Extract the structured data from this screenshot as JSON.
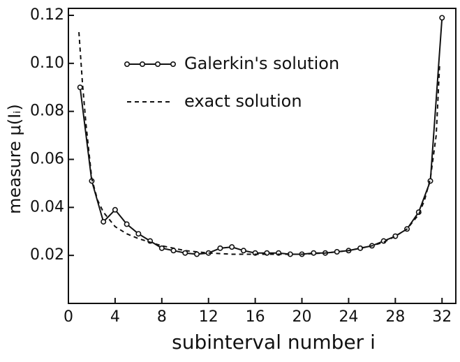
{
  "chart_data": {
    "type": "line",
    "xlabel": "subinterval number  i",
    "ylabel": "measure  μ(Iᵢ)",
    "xlim": [
      0,
      33.3
    ],
    "ylim": [
      0,
      0.12
    ],
    "xticks": [
      0,
      4,
      8,
      12,
      16,
      20,
      24,
      28,
      32
    ],
    "yticks": [
      0.02,
      0.04,
      0.06,
      0.08,
      {
        "value": 0.1,
        "label": "0.10"
      },
      0.12
    ],
    "series": [
      {
        "name": "Galerkin's solution",
        "color": "#111111",
        "style": "solid-markers",
        "x": [
          1,
          2,
          3,
          4,
          5,
          6,
          7,
          8,
          9,
          10,
          11,
          12,
          13,
          14,
          15,
          16,
          17,
          18,
          19,
          20,
          21,
          22,
          23,
          24,
          25,
          26,
          27,
          28,
          29,
          30,
          31,
          32
        ],
        "values": [
          0.09,
          0.051,
          0.034,
          0.039,
          0.033,
          0.029,
          0.026,
          0.023,
          0.022,
          0.021,
          0.0205,
          0.021,
          0.023,
          0.0235,
          0.022,
          0.021,
          0.021,
          0.021,
          0.0205,
          0.0205,
          0.021,
          0.021,
          0.0215,
          0.022,
          0.023,
          0.024,
          0.026,
          0.028,
          0.031,
          0.038,
          0.051,
          0.119
        ]
      },
      {
        "name": "exact solution",
        "color": "#111111",
        "style": "dashed",
        "x": [
          0.9,
          1.2,
          1.5,
          2,
          2.5,
          3,
          4,
          5,
          6,
          8,
          10,
          12,
          14,
          16,
          18,
          20,
          22,
          24,
          26,
          27,
          28,
          29,
          30,
          30.5,
          31,
          31.5,
          31.8
        ],
        "values": [
          0.113,
          0.092,
          0.075,
          0.052,
          0.043,
          0.038,
          0.032,
          0.029,
          0.027,
          0.024,
          0.022,
          0.021,
          0.0205,
          0.0205,
          0.0205,
          0.0205,
          0.021,
          0.022,
          0.024,
          0.0255,
          0.028,
          0.031,
          0.037,
          0.043,
          0.052,
          0.07,
          0.1
        ]
      }
    ]
  }
}
